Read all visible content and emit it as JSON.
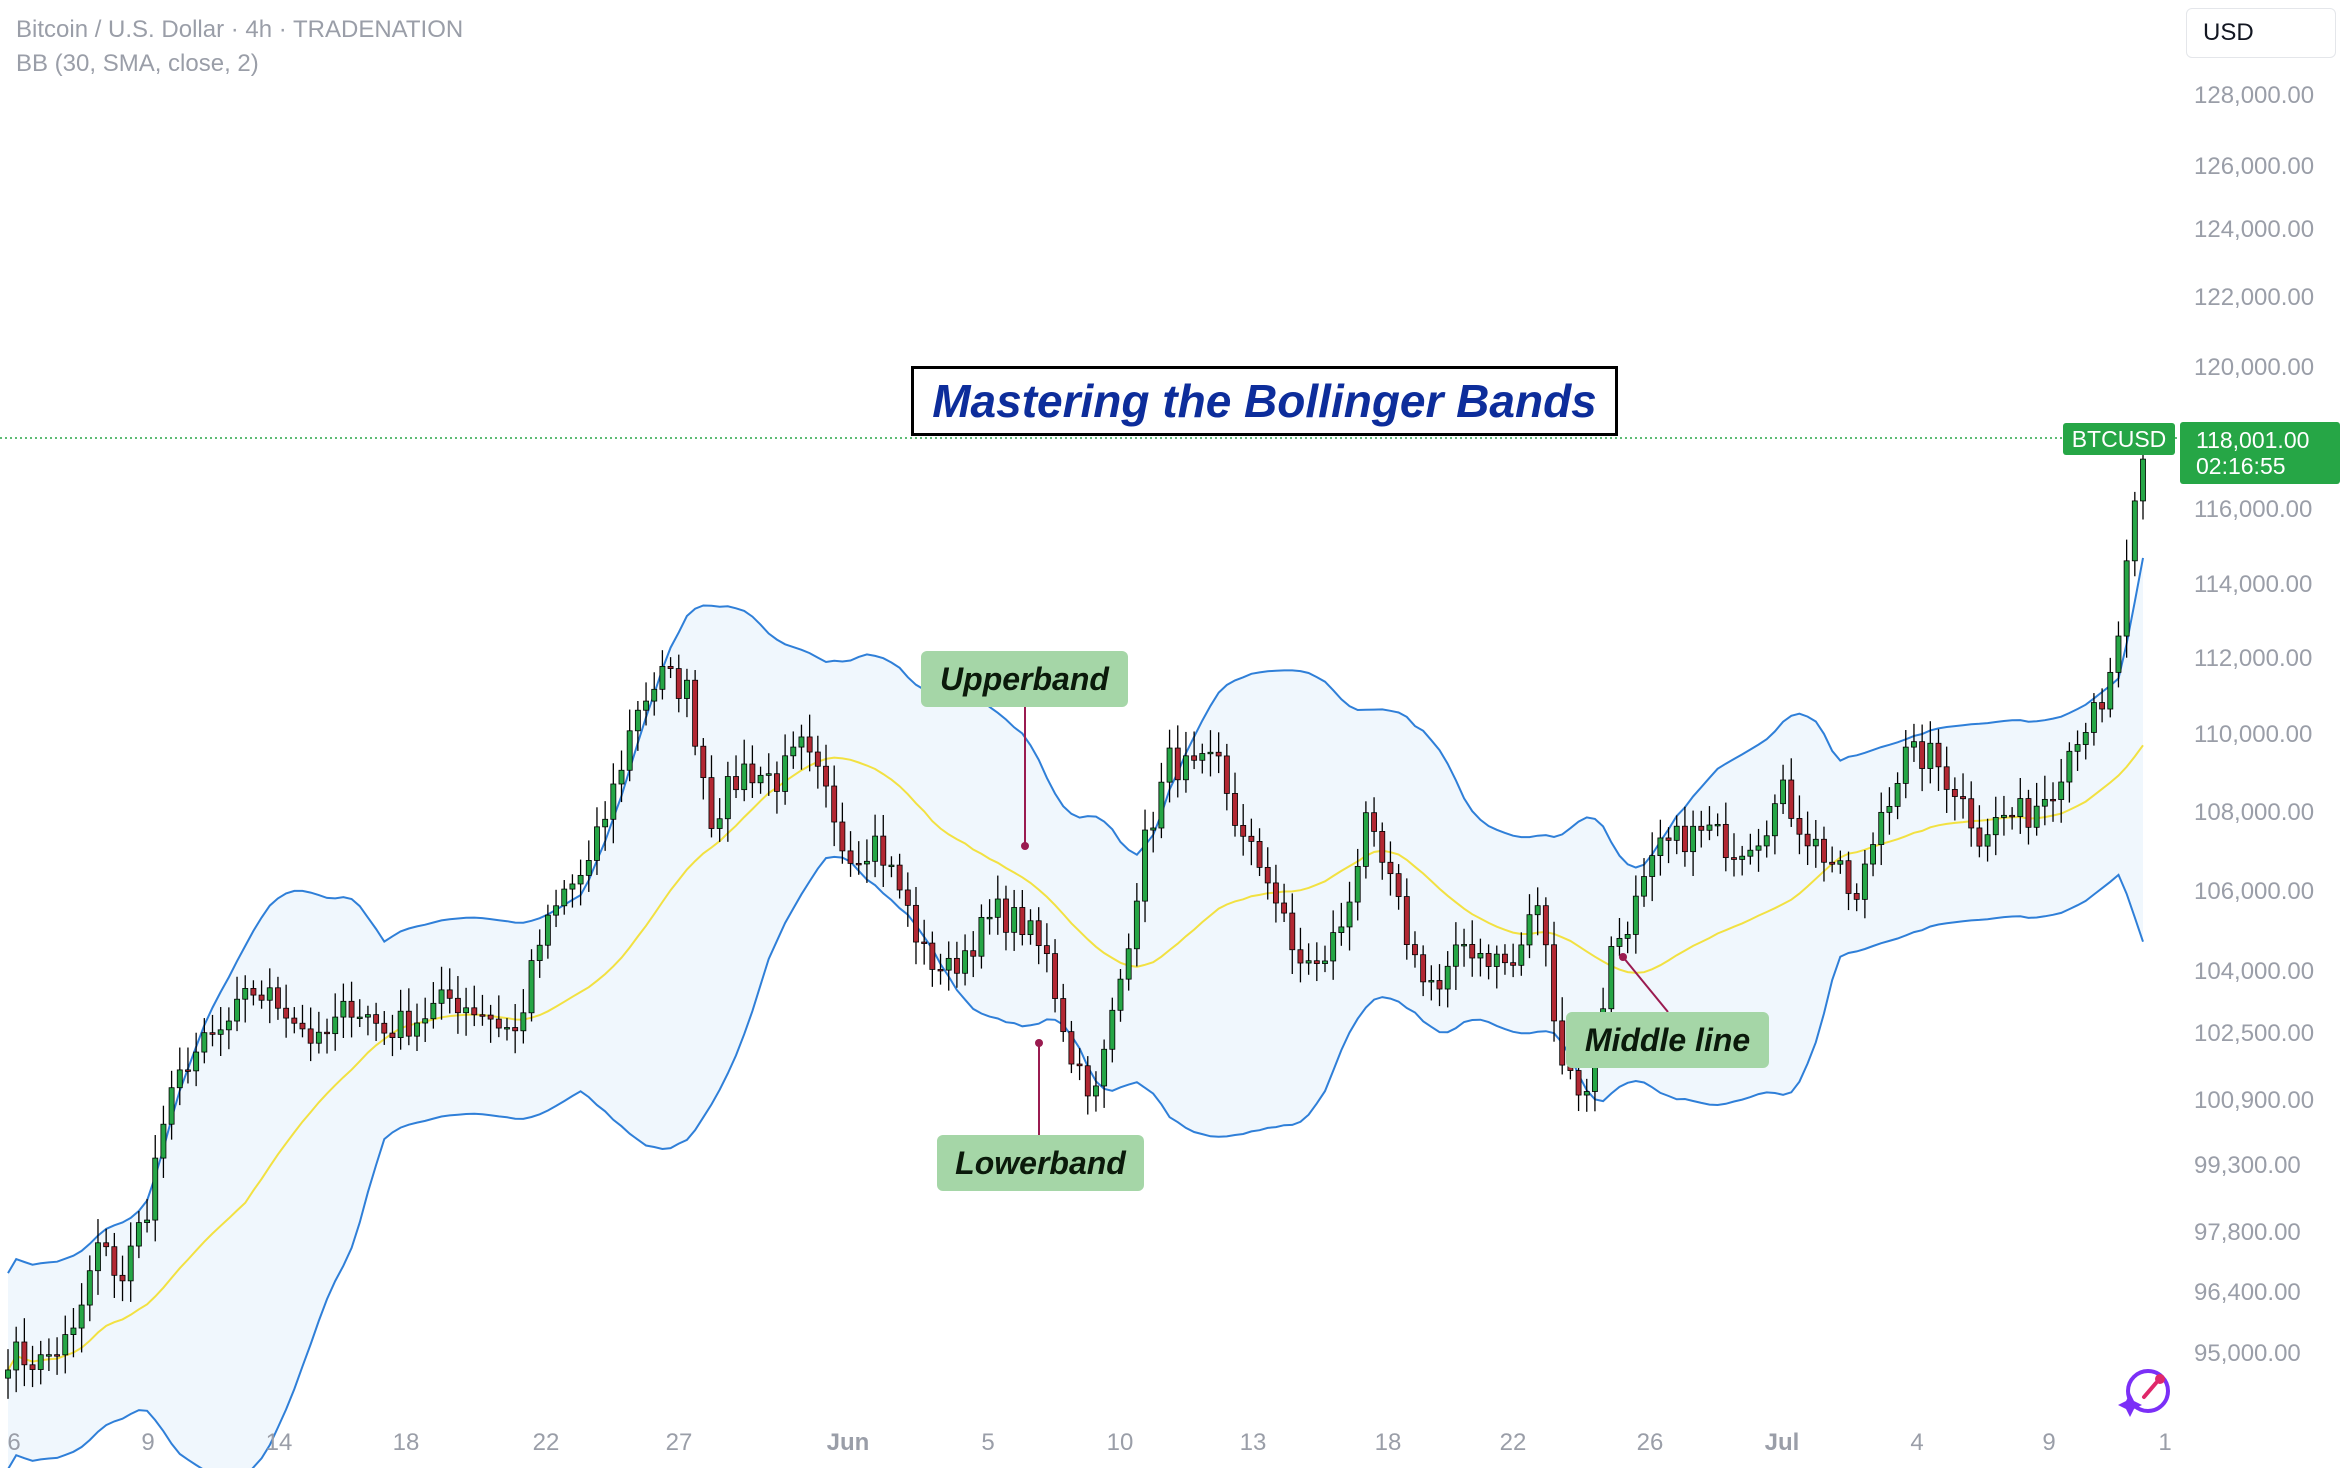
{
  "legend": {
    "symbol_line": "Bitcoin / U.S. Dollar · 4h · TRADENATION",
    "indicator_line": "BB (30, SMA, close, 2)"
  },
  "currency": "USD",
  "title": "Mastering the Bollinger Bands",
  "annotations": {
    "upper": "Upperband",
    "lower": "Lowerband",
    "middle": "Middle line"
  },
  "last_price": {
    "symbol": "BTCUSD",
    "price": "118,001.00",
    "countdown": "02:16:55"
  },
  "colors": {
    "up_candle": "#26a646",
    "down_candle": "#b22833",
    "band_line": "#2f7fd8",
    "band_fill": "#eaf4fc",
    "middle_line": "#f2e142",
    "price_line": "#26a646",
    "title_text": "#0d2d9b",
    "annotation_bg": "#a5d6a7"
  },
  "chart_data": {
    "type": "candlestick",
    "y_ticks": [
      "128,000.00",
      "126,000.00",
      "124,000.00",
      "122,000.00",
      "120,000.00",
      "116,000.00",
      "114,000.00",
      "112,000.00",
      "110,000.00",
      "108,000.00",
      "106,000.00",
      "104,000.00",
      "102,500.00",
      "100,900.00",
      "99,300.00",
      "97,800.00",
      "96,400.00",
      "95,000.00"
    ],
    "x_ticks": [
      "6",
      "9",
      "14",
      "18",
      "22",
      "27",
      "Jun",
      "5",
      "10",
      "13",
      "18",
      "22",
      "26",
      "Jul",
      "4",
      "9",
      "1"
    ],
    "y_scale": "log",
    "ylim": [
      93500,
      129000
    ],
    "indicator": "Bollinger Bands (30, SMA, close, 2)",
    "price_anchors": [
      [
        0,
        94800
      ],
      [
        4,
        94600
      ],
      [
        8,
        95200
      ],
      [
        11,
        97300
      ],
      [
        14,
        96600
      ],
      [
        17,
        98300
      ],
      [
        19,
        100300
      ],
      [
        22,
        101900
      ],
      [
        26,
        102500
      ],
      [
        30,
        103600
      ],
      [
        34,
        103200
      ],
      [
        38,
        102200
      ],
      [
        42,
        103300
      ],
      [
        46,
        102600
      ],
      [
        50,
        102900
      ],
      [
        54,
        103400
      ],
      [
        58,
        103100
      ],
      [
        62,
        102500
      ],
      [
        65,
        104800
      ],
      [
        68,
        106100
      ],
      [
        71,
        106800
      ],
      [
        74,
        108800
      ],
      [
        77,
        111100
      ],
      [
        80,
        111900
      ],
      [
        83,
        111500
      ],
      [
        86,
        108100
      ],
      [
        90,
        109400
      ],
      [
        94,
        109100
      ],
      [
        97,
        109900
      ],
      [
        100,
        108700
      ],
      [
        103,
        107100
      ],
      [
        106,
        107500
      ],
      [
        109,
        106200
      ],
      [
        112,
        104500
      ],
      [
        115,
        104100
      ],
      [
        118,
        104900
      ],
      [
        121,
        105600
      ],
      [
        124,
        105300
      ],
      [
        127,
        104400
      ],
      [
        130,
        102000
      ],
      [
        133,
        101000
      ],
      [
        136,
        103900
      ],
      [
        139,
        107400
      ],
      [
        142,
        109600
      ],
      [
        145,
        109300
      ],
      [
        148,
        109500
      ],
      [
        151,
        107400
      ],
      [
        154,
        106600
      ],
      [
        157,
        104600
      ],
      [
        160,
        104100
      ],
      [
        163,
        105300
      ],
      [
        166,
        107800
      ],
      [
        169,
        106300
      ],
      [
        172,
        104400
      ],
      [
        175,
        103600
      ],
      [
        178,
        104800
      ],
      [
        181,
        104500
      ],
      [
        184,
        104200
      ],
      [
        187,
        105900
      ],
      [
        190,
        101900
      ],
      [
        193,
        100900
      ],
      [
        196,
        104600
      ],
      [
        199,
        105800
      ],
      [
        202,
        107200
      ],
      [
        205,
        107600
      ],
      [
        208,
        107700
      ],
      [
        211,
        107300
      ],
      [
        214,
        107700
      ],
      [
        217,
        108700
      ],
      [
        220,
        107600
      ],
      [
        223,
        106900
      ],
      [
        226,
        105800
      ],
      [
        229,
        108300
      ],
      [
        232,
        109700
      ],
      [
        235,
        109700
      ],
      [
        238,
        108900
      ],
      [
        241,
        107700
      ],
      [
        244,
        108100
      ],
      [
        247,
        108200
      ],
      [
        250,
        109000
      ],
      [
        253,
        110400
      ],
      [
        256,
        111000
      ],
      [
        258,
        113000
      ],
      [
        259,
        115100
      ],
      [
        260,
        116800
      ],
      [
        261,
        118001
      ]
    ],
    "n_candles": 262
  }
}
